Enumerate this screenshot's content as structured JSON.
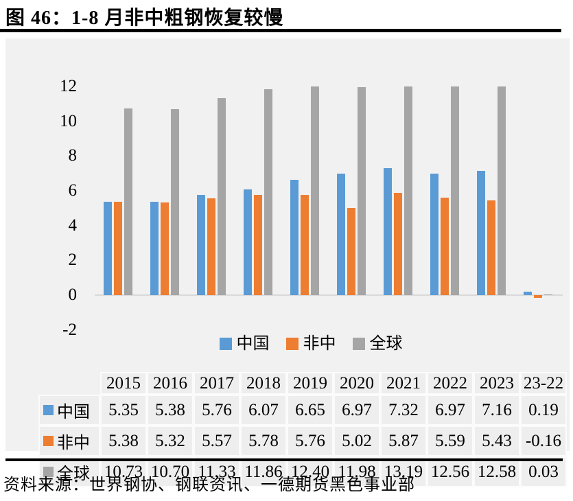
{
  "title": "图 46：1-8 月非中粗钢恢复较慢",
  "source": "资料来源：世界钢协、钢联资讯、一德期货黑色事业部",
  "colors": {
    "china": "#5B9BD5",
    "non_china": "#ED7D31",
    "global": "#A5A5A5",
    "panel_bg": "#F1F1F1",
    "axis_line": "#D9D9D9",
    "rule": "#000000"
  },
  "chart_data": {
    "type": "bar",
    "title": "图 46：1-8 月非中粗钢恢复较慢",
    "categories": [
      "2015",
      "2016",
      "2017",
      "2018",
      "2019",
      "2020",
      "2021",
      "2022",
      "2023",
      "23-22"
    ],
    "series": [
      {
        "key": "china",
        "name": "中国",
        "color": "#5B9BD5",
        "values": [
          5.35,
          5.38,
          5.76,
          6.07,
          6.65,
          6.97,
          7.32,
          6.97,
          7.16,
          0.19
        ]
      },
      {
        "key": "non-china",
        "name": "非中",
        "color": "#ED7D31",
        "values": [
          5.38,
          5.32,
          5.57,
          5.78,
          5.76,
          5.02,
          5.87,
          5.59,
          5.43,
          -0.16
        ]
      },
      {
        "key": "global",
        "name": "全球",
        "color": "#A5A5A5",
        "values": [
          10.73,
          10.7,
          11.33,
          11.86,
          12.4,
          11.98,
          13.19,
          12.56,
          12.58,
          0.03
        ]
      }
    ],
    "y_ticks": [
      12,
      10,
      8,
      6,
      4,
      2,
      0,
      -2
    ],
    "ylim": [
      -2,
      12
    ],
    "bars_clipped_at": 12,
    "grid": false,
    "legend_position": "bottom-inside",
    "data_table_shown": true,
    "value_decimals": 2
  }
}
